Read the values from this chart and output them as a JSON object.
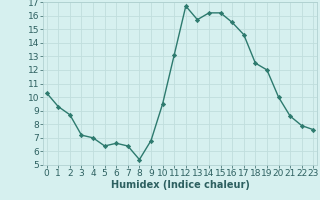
{
  "x": [
    0,
    1,
    2,
    3,
    4,
    5,
    6,
    7,
    8,
    9,
    10,
    11,
    12,
    13,
    14,
    15,
    16,
    17,
    18,
    19,
    20,
    21,
    22,
    23
  ],
  "y": [
    10.3,
    9.3,
    8.7,
    7.2,
    7.0,
    6.4,
    6.6,
    6.4,
    5.4,
    6.8,
    9.5,
    13.1,
    16.7,
    15.7,
    16.2,
    16.2,
    15.5,
    14.6,
    12.5,
    12.0,
    10.0,
    8.6,
    7.9,
    7.6
  ],
  "xlabel": "Humidex (Indice chaleur)",
  "ylim": [
    5,
    17
  ],
  "xlim": [
    -0.3,
    23.3
  ],
  "yticks": [
    5,
    6,
    7,
    8,
    9,
    10,
    11,
    12,
    13,
    14,
    15,
    16,
    17
  ],
  "xticks": [
    0,
    1,
    2,
    3,
    4,
    5,
    6,
    7,
    8,
    9,
    10,
    11,
    12,
    13,
    14,
    15,
    16,
    17,
    18,
    19,
    20,
    21,
    22,
    23
  ],
  "line_color": "#2d7a6e",
  "marker_color": "#2d7a6e",
  "bg_color": "#d6f0ef",
  "grid_color": "#c0dedd",
  "xlabel_fontsize": 7,
  "tick_fontsize": 6.5
}
